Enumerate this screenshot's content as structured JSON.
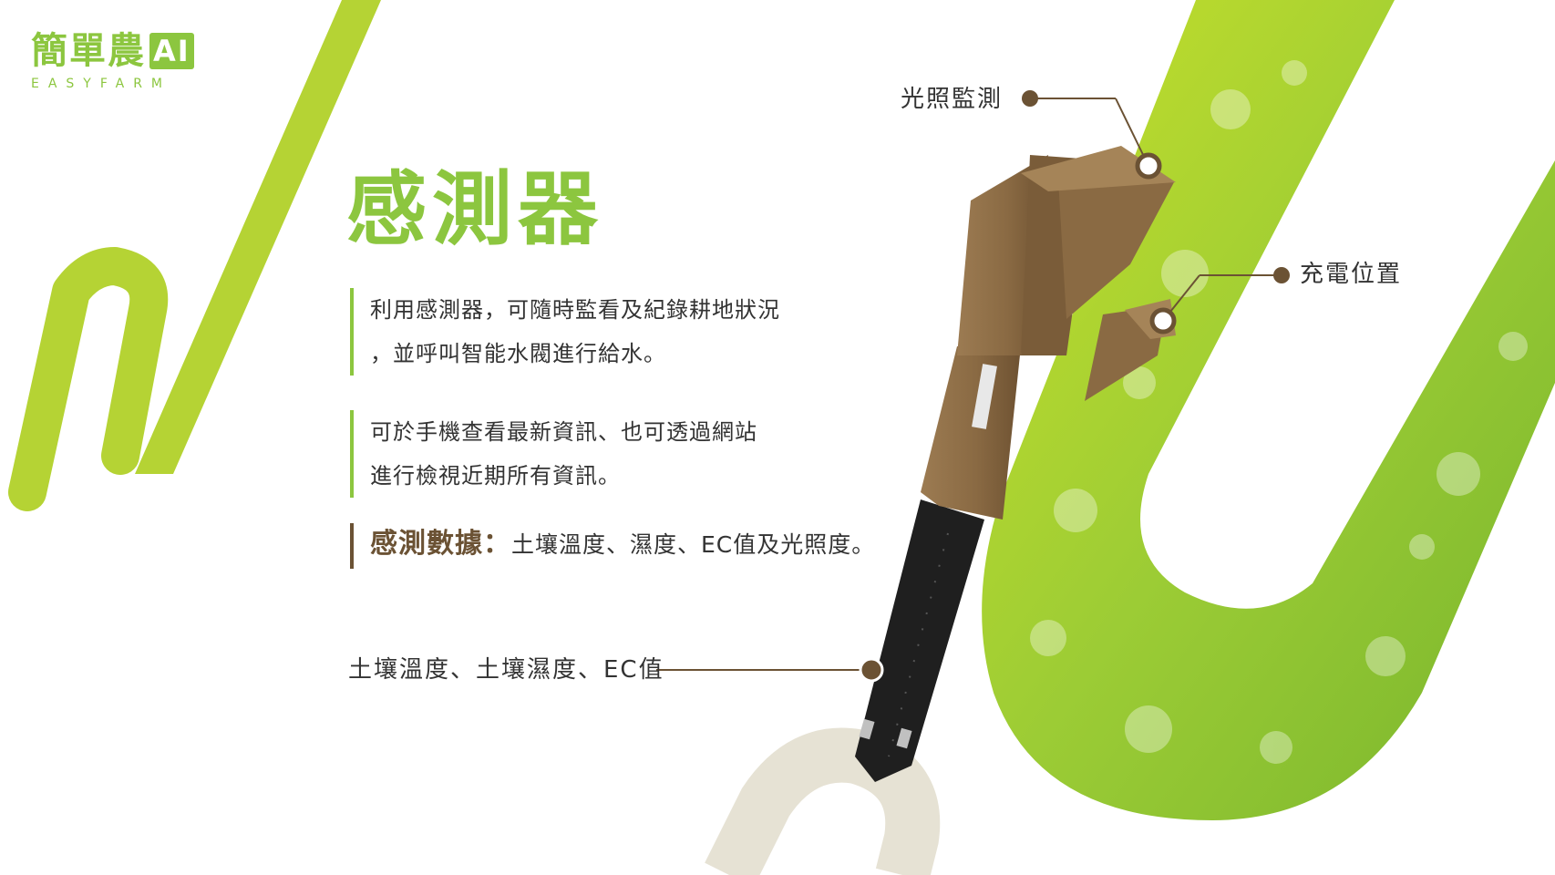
{
  "logo": {
    "name": "簡單農",
    "ai": "AI",
    "sub": "EASYFARM"
  },
  "title": "感測器",
  "paragraphs": [
    {
      "lines": [
        "利用感測器，可隨時監看及紀錄耕地狀況",
        "，並呼叫智能水閥進行給水。"
      ]
    },
    {
      "lines": [
        "可於手機查看最新資訊、也可透過網站",
        "進行檢視近期所有資訊。"
      ]
    }
  ],
  "sensor_data": {
    "label": "感測數據：",
    "value": "土壤溫度、濕度、EC值及光照度。"
  },
  "callouts": {
    "light": "光照監測",
    "charge": "充電位置",
    "soil": "土壤溫度、土壤濕度、EC值"
  },
  "colors": {
    "accent": "#8cc63f",
    "lime": "#b5d334",
    "brown": "#6b5234",
    "beige": "#e6e2d4"
  }
}
